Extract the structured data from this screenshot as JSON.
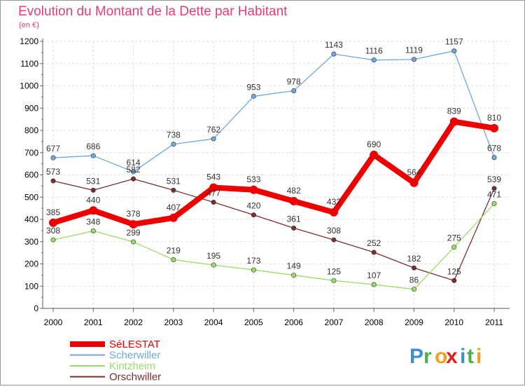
{
  "chart_data": {
    "type": "line",
    "title": "Evolution du Montant de la Dette par Habitant",
    "subtitle": "(en €)",
    "xlabel": "",
    "ylabel": "",
    "x": [
      "2000",
      "2001",
      "2002",
      "2003",
      "2004",
      "2005",
      "2006",
      "2007",
      "2008",
      "2009",
      "2010",
      "2011"
    ],
    "ylim": [
      0,
      1200
    ],
    "yticks": [
      0,
      100,
      200,
      300,
      400,
      500,
      600,
      700,
      800,
      900,
      1000,
      1100,
      1200
    ],
    "grid": true,
    "legend_position": "bottom-left",
    "series": [
      {
        "name": "SéLESTAT",
        "color": "#ee0000",
        "values": [
          385,
          440,
          378,
          407,
          543,
          533,
          482,
          432,
          690,
          564,
          839,
          810
        ],
        "labels": [
          "385",
          "440",
          "378",
          "407",
          "543",
          "533",
          "482",
          "432",
          "690",
          "564",
          "839",
          "810"
        ]
      },
      {
        "name": "Scherwiller",
        "color": "#6fa8dc",
        "values": [
          677,
          686,
          614,
          738,
          762,
          953,
          978,
          1143,
          1116,
          1119,
          1157,
          678
        ],
        "labels": [
          "677",
          "686",
          "614",
          "738",
          "762",
          "953",
          "978",
          "1143",
          "1116",
          "1119",
          "1157",
          "678"
        ]
      },
      {
        "name": "Kintzheim",
        "color": "#99dd66",
        "values": [
          308,
          348,
          299,
          219,
          195,
          173,
          149,
          125,
          107,
          86,
          275,
          471
        ],
        "labels": [
          "308",
          "348",
          "299",
          "219",
          "195",
          "173",
          "149",
          "125",
          "107",
          "86",
          "275",
          "471"
        ]
      },
      {
        "name": "Orschwiller",
        "color": "#7b2e2e",
        "values": [
          573,
          531,
          582,
          531,
          477,
          420,
          361,
          308,
          252,
          182,
          125,
          539
        ],
        "labels": [
          "573",
          "531",
          "582",
          "531",
          "477",
          "420",
          "361",
          "308",
          "252",
          "182",
          "125",
          "539"
        ]
      }
    ]
  },
  "brand": {
    "text": "Proxiti",
    "letters": [
      "P",
      "r",
      "o",
      "x",
      "i",
      "t",
      "i"
    ],
    "colors": [
      "#3d8fd6",
      "#4caf50",
      "#f0a020",
      "#e02020",
      "#3d8fd6",
      "#4caf50",
      "#f0a020"
    ]
  }
}
